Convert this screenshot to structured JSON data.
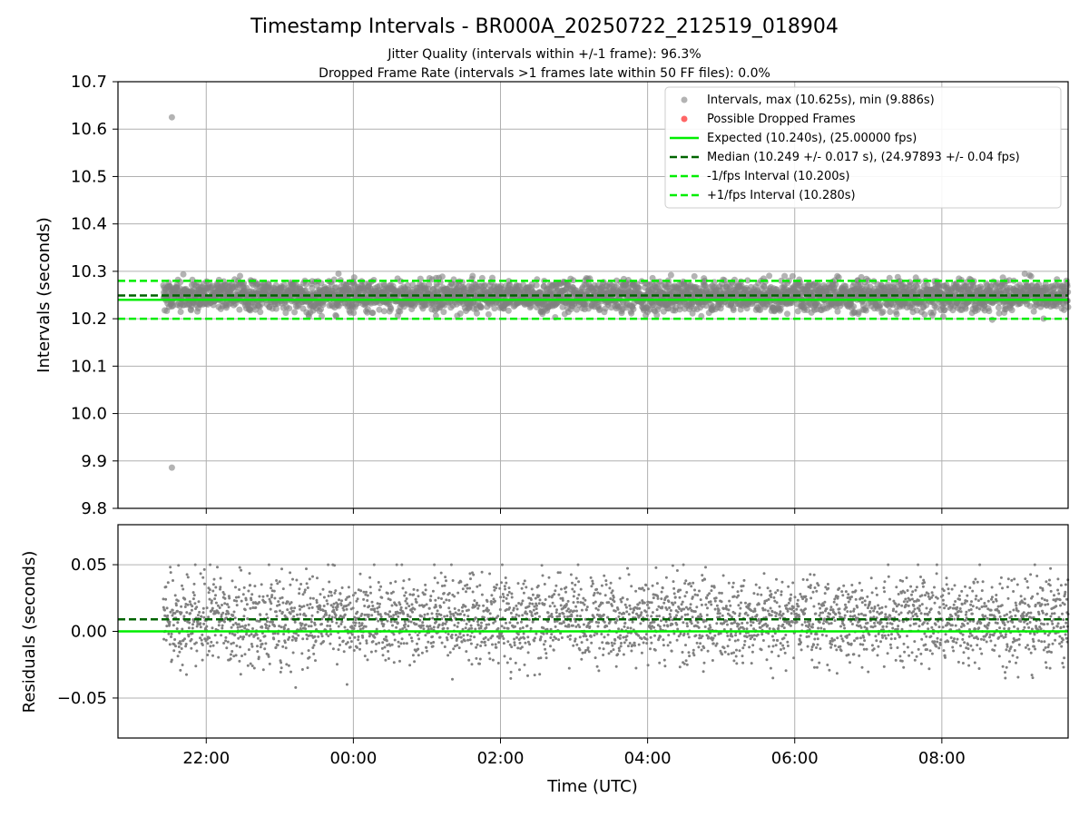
{
  "title": "Timestamp Intervals - BR000A_20250722_212519_018904",
  "subtitle_1": "Jitter Quality (intervals within +/-1 frame): 96.3%",
  "subtitle_2": "Dropped Frame Rate (intervals >1 frames late within 50 FF files): 0.0%",
  "colors": {
    "points": "#808080",
    "dropped": "#ff0000",
    "expected": "#00ee00",
    "median": "#006400",
    "interval": "#00ee00",
    "grid": "#b0b0b0"
  },
  "chart_data": [
    {
      "type": "scatter",
      "ylabel": "Intervals (seconds)",
      "ylim": [
        9.8,
        10.7
      ],
      "yticks": [
        9.8,
        9.9,
        10.0,
        10.1,
        10.2,
        10.3,
        10.4,
        10.5,
        10.6,
        10.7
      ],
      "ytick_labels": [
        "9.8",
        "9.9",
        "10.0",
        "10.1",
        "10.2",
        "10.3",
        "10.4",
        "10.5",
        "10.6",
        "10.7"
      ],
      "xlim": [
        "2025-07-22 20:48",
        "2025-07-23 09:43"
      ],
      "xticks": [
        "22:00",
        "00:00",
        "02:00",
        "04:00",
        "06:00",
        "08:00"
      ],
      "grid": true,
      "legend_position": "upper right",
      "series": [
        {
          "name": "Intervals, max (10.625s), min (9.886s)",
          "kind": "scatter",
          "color": "#808080",
          "time_range": [
            "21:25",
            "09:43"
          ],
          "center": 10.249,
          "spread": 0.017,
          "max": 10.625,
          "min": 9.886,
          "outliers": [
            {
              "time": "21:32",
              "value": 10.625
            },
            {
              "time": "21:32",
              "value": 9.886
            }
          ]
        },
        {
          "name": "Possible Dropped Frames",
          "kind": "scatter",
          "color": "#ff0000",
          "values": []
        },
        {
          "name": "Expected (10.240s), (25.00000 fps)",
          "kind": "hline",
          "y": 10.24,
          "style": "solid",
          "color": "#00ee00"
        },
        {
          "name": "Median (10.249 +/- 0.017 s), (24.97893 +/- 0.04 fps)",
          "kind": "hline",
          "y": 10.249,
          "style": "dashed",
          "color": "#006400"
        },
        {
          "name": "-1/fps Interval (10.200s)",
          "kind": "hline",
          "y": 10.2,
          "style": "dashed",
          "color": "#00ee00"
        },
        {
          "name": "+1/fps Interval (10.280s)",
          "kind": "hline",
          "y": 10.28,
          "style": "dashed",
          "color": "#00ee00"
        }
      ]
    },
    {
      "type": "scatter",
      "xlabel": "Time (UTC)",
      "ylabel": "Residuals (seconds)",
      "ylim": [
        -0.08,
        0.08
      ],
      "yticks": [
        -0.05,
        0.0,
        0.05
      ],
      "ytick_labels": [
        "−0.05",
        "0.00",
        "0.05"
      ],
      "xlim": [
        "2025-07-22 20:48",
        "2025-07-23 09:43"
      ],
      "xticks": [
        "22:00",
        "00:00",
        "02:00",
        "04:00",
        "06:00",
        "08:00"
      ],
      "grid": true,
      "series": [
        {
          "kind": "scatter",
          "color": "#808080",
          "center": 0.009,
          "spread": 0.017,
          "max": 0.053,
          "min": -0.048
        },
        {
          "kind": "hline",
          "y": 0.0,
          "style": "solid",
          "color": "#00ee00"
        },
        {
          "kind": "hline",
          "y": 0.009,
          "style": "dashed",
          "color": "#006400"
        }
      ]
    }
  ]
}
